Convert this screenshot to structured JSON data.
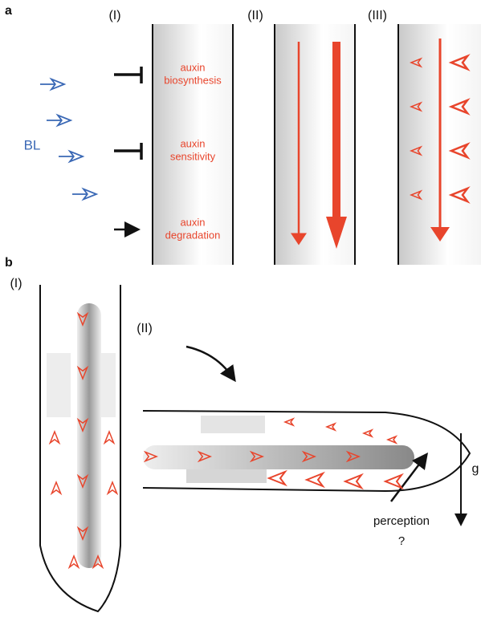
{
  "panel_a": {
    "label": "a",
    "columns": [
      "(I)",
      "(II)",
      "(III)"
    ],
    "signal": "BL",
    "processes": [
      [
        "auxin",
        "biosynthesis"
      ],
      [
        "auxin",
        "sensitivity"
      ],
      [
        "auxin",
        "degradation"
      ]
    ]
  },
  "panel_b": {
    "label": "b",
    "stages": [
      "(I)",
      "(II)"
    ],
    "gravity": "g",
    "perception": [
      "perception",
      "?"
    ]
  }
}
